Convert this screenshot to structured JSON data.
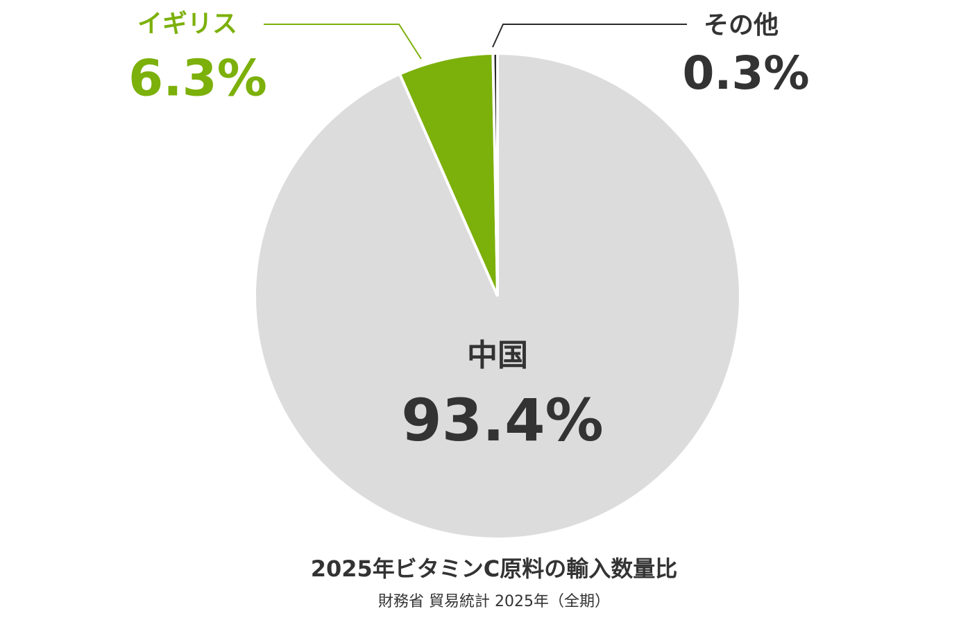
{
  "chart_data": {
    "type": "pie",
    "title": "2025年ビタミンC原料の輸入数量比",
    "subtitle": "財務省 貿易統計 2025年（全期）",
    "categories": [
      "中国",
      "イギリス",
      "その他"
    ],
    "values": [
      93.4,
      6.3,
      0.3
    ],
    "value_labels": [
      "93.4%",
      "6.3%",
      "0.3%"
    ],
    "colors": [
      "#dcdcdc",
      "#7cb00a",
      "#2a2a2a"
    ]
  }
}
